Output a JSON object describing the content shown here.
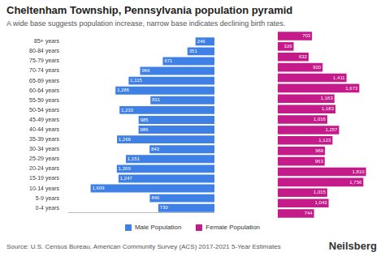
{
  "chart_data": {
    "type": "bar",
    "orientation": "horizontal",
    "title": "Cheltenham Township, Pennsylvania population pyramid",
    "subtitle": "A wide base suggests population increase, narrow base indicates declining birth rates.",
    "categories": [
      "85+ years",
      "80-84 years",
      "75-79 years",
      "70-74 years",
      "65-69 years",
      "60-64 years",
      "55-59 years",
      "50-54 years",
      "45-49 years",
      "40-44 years",
      "35-39 years",
      "30-34 years",
      "25-29 years",
      "20-24 years",
      "15-19 years",
      "10-14 years",
      "5-9 years",
      "0-4 years"
    ],
    "series": [
      {
        "name": "Male Population",
        "color": "#3f80e6",
        "values": [
          246,
          351,
          671,
          966,
          1115,
          1286,
          831,
          1233,
          985,
          986,
          1266,
          843,
          1151,
          1269,
          1247,
          1609,
          840,
          730
        ],
        "value_labels": [
          "246",
          "351",
          "671",
          "966",
          "1,115",
          "1,286",
          "831",
          "1,233",
          "985",
          "986",
          "1,266",
          "843",
          "1,151",
          "1,269",
          "1,247",
          "1,609",
          "840",
          "730"
        ]
      },
      {
        "name": "Female Population",
        "color": "#c51a8a",
        "values": [
          703,
          326,
          632,
          920,
          1411,
          1673,
          1163,
          1183,
          1016,
          1257,
          1123,
          969,
          963,
          1810,
          1756,
          1015,
          1043,
          744
        ],
        "value_labels": [
          "703",
          "326",
          "632",
          "920",
          "1,411",
          "1,673",
          "1,163",
          "1,183",
          "1,016",
          "1,257",
          "1,123",
          "969",
          "963",
          "1,810",
          "1,756",
          "1,015",
          "1,043",
          "744"
        ]
      }
    ],
    "xlim": [
      0,
      1900
    ],
    "tick_labels": "y",
    "data_labels": true,
    "grid": false,
    "legend": "bottom",
    "annotations": [
      "Source: U.S. Census Bureau, American Community Survey (ACS) 2017-2021 5-Year Estimates",
      "Neilsberg"
    ]
  }
}
